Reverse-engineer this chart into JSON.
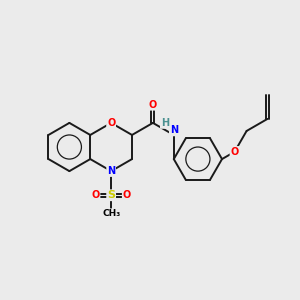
{
  "bg_color": "#ebebeb",
  "fig_size": [
    3.0,
    3.0
  ],
  "dpi": 100,
  "atom_colors": {
    "O": "#ff0000",
    "N": "#0000ff",
    "S": "#cccc00",
    "H": "#4a9090",
    "C": "#000000"
  },
  "bond_color": "#1a1a1a",
  "bond_width": 1.4,
  "aromatic_circle_ratio": 0.5,
  "BL": 0.85
}
